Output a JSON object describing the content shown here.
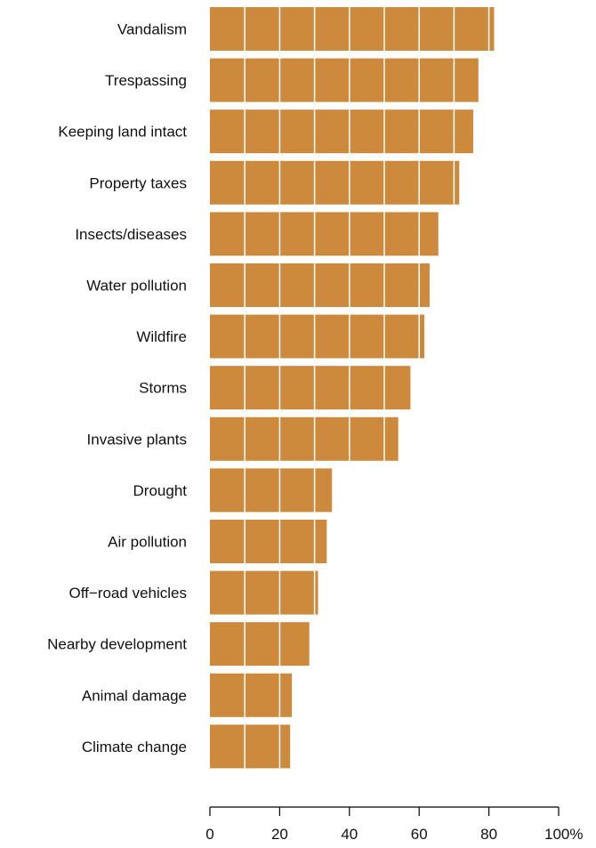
{
  "chart_data": {
    "type": "bar",
    "orientation": "horizontal",
    "title": "",
    "xlabel": "",
    "ylabel": "",
    "categories": [
      "Vandalism",
      "Trespassing",
      "Keeping land intact",
      "Property taxes",
      "Insects/diseases",
      "Water pollution",
      "Wildfire",
      "Storms",
      "Invasive plants",
      "Drought",
      "Air pollution",
      "Off−road vehicles",
      "Nearby development",
      "Animal damage",
      "Climate change"
    ],
    "values": [
      81.5,
      77,
      75.5,
      71.5,
      65.5,
      63,
      61.5,
      57.5,
      54,
      35,
      33.5,
      31,
      28.5,
      23.5,
      23
    ],
    "xlim": [
      0,
      100
    ],
    "xticks": [
      0,
      20,
      40,
      60,
      80,
      100
    ],
    "xtick_labels": [
      "0",
      "20",
      "40",
      "60",
      "80",
      "100%"
    ],
    "grid_step": 10,
    "grid": true,
    "bar_color": "#cd8a3d",
    "grid_color": "#ffffff"
  }
}
